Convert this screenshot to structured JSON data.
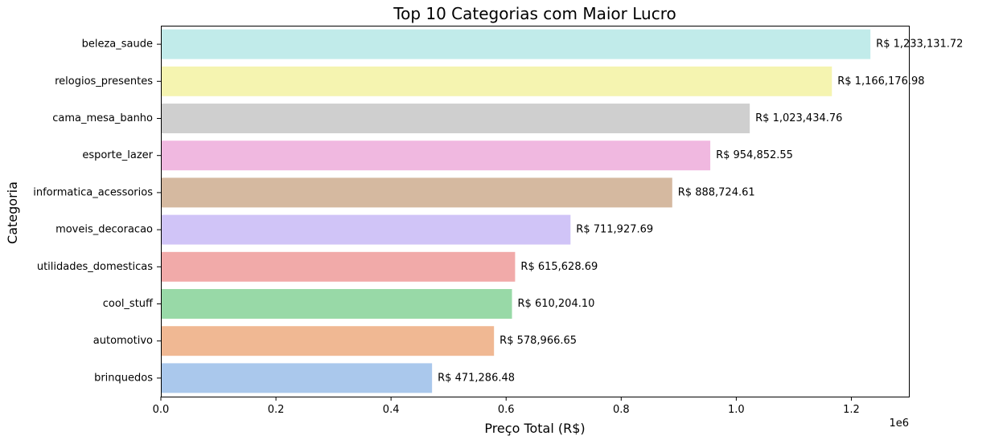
{
  "chart_data": {
    "type": "bar",
    "orientation": "horizontal",
    "title": "Top 10 Categorias com Maior Lucro",
    "xlabel": "Preço Total (R$)",
    "ylabel": "Categoria",
    "x_offset_label": "1e6",
    "xlim": [
      0,
      1.3
    ],
    "x_ticks": [
      "0.0",
      "0.2",
      "0.4",
      "0.6",
      "0.8",
      "1.0",
      "1.2"
    ],
    "grid": false,
    "categories": [
      "beleza_saude",
      "relogios_presentes",
      "cama_mesa_banho",
      "esporte_lazer",
      "informatica_acessorios",
      "moveis_decoracao",
      "utilidades_domesticas",
      "cool_stuff",
      "automotivo",
      "brinquedos"
    ],
    "values": [
      1233131.72,
      1166176.98,
      1023434.76,
      954852.55,
      888724.61,
      711927.69,
      615628.69,
      610204.1,
      578966.65,
      471286.48
    ],
    "data_labels": [
      "R$ 1,233,131.72",
      "R$ 1,166,176.98",
      "R$ 1,023,434.76",
      "R$ 954,852.55",
      "R$ 888,724.61",
      "R$ 711,927.69",
      "R$ 615,628.69",
      "R$ 610,204.10",
      "R$ 578,966.65",
      "R$ 471,286.48"
    ],
    "colors": [
      "#c1ebea",
      "#f5f4b0",
      "#cfcfcf",
      "#f0b8e0",
      "#d5b9a0",
      "#d0c4f7",
      "#f1aaa9",
      "#98d9a7",
      "#f0b893",
      "#aac8ec"
    ]
  }
}
